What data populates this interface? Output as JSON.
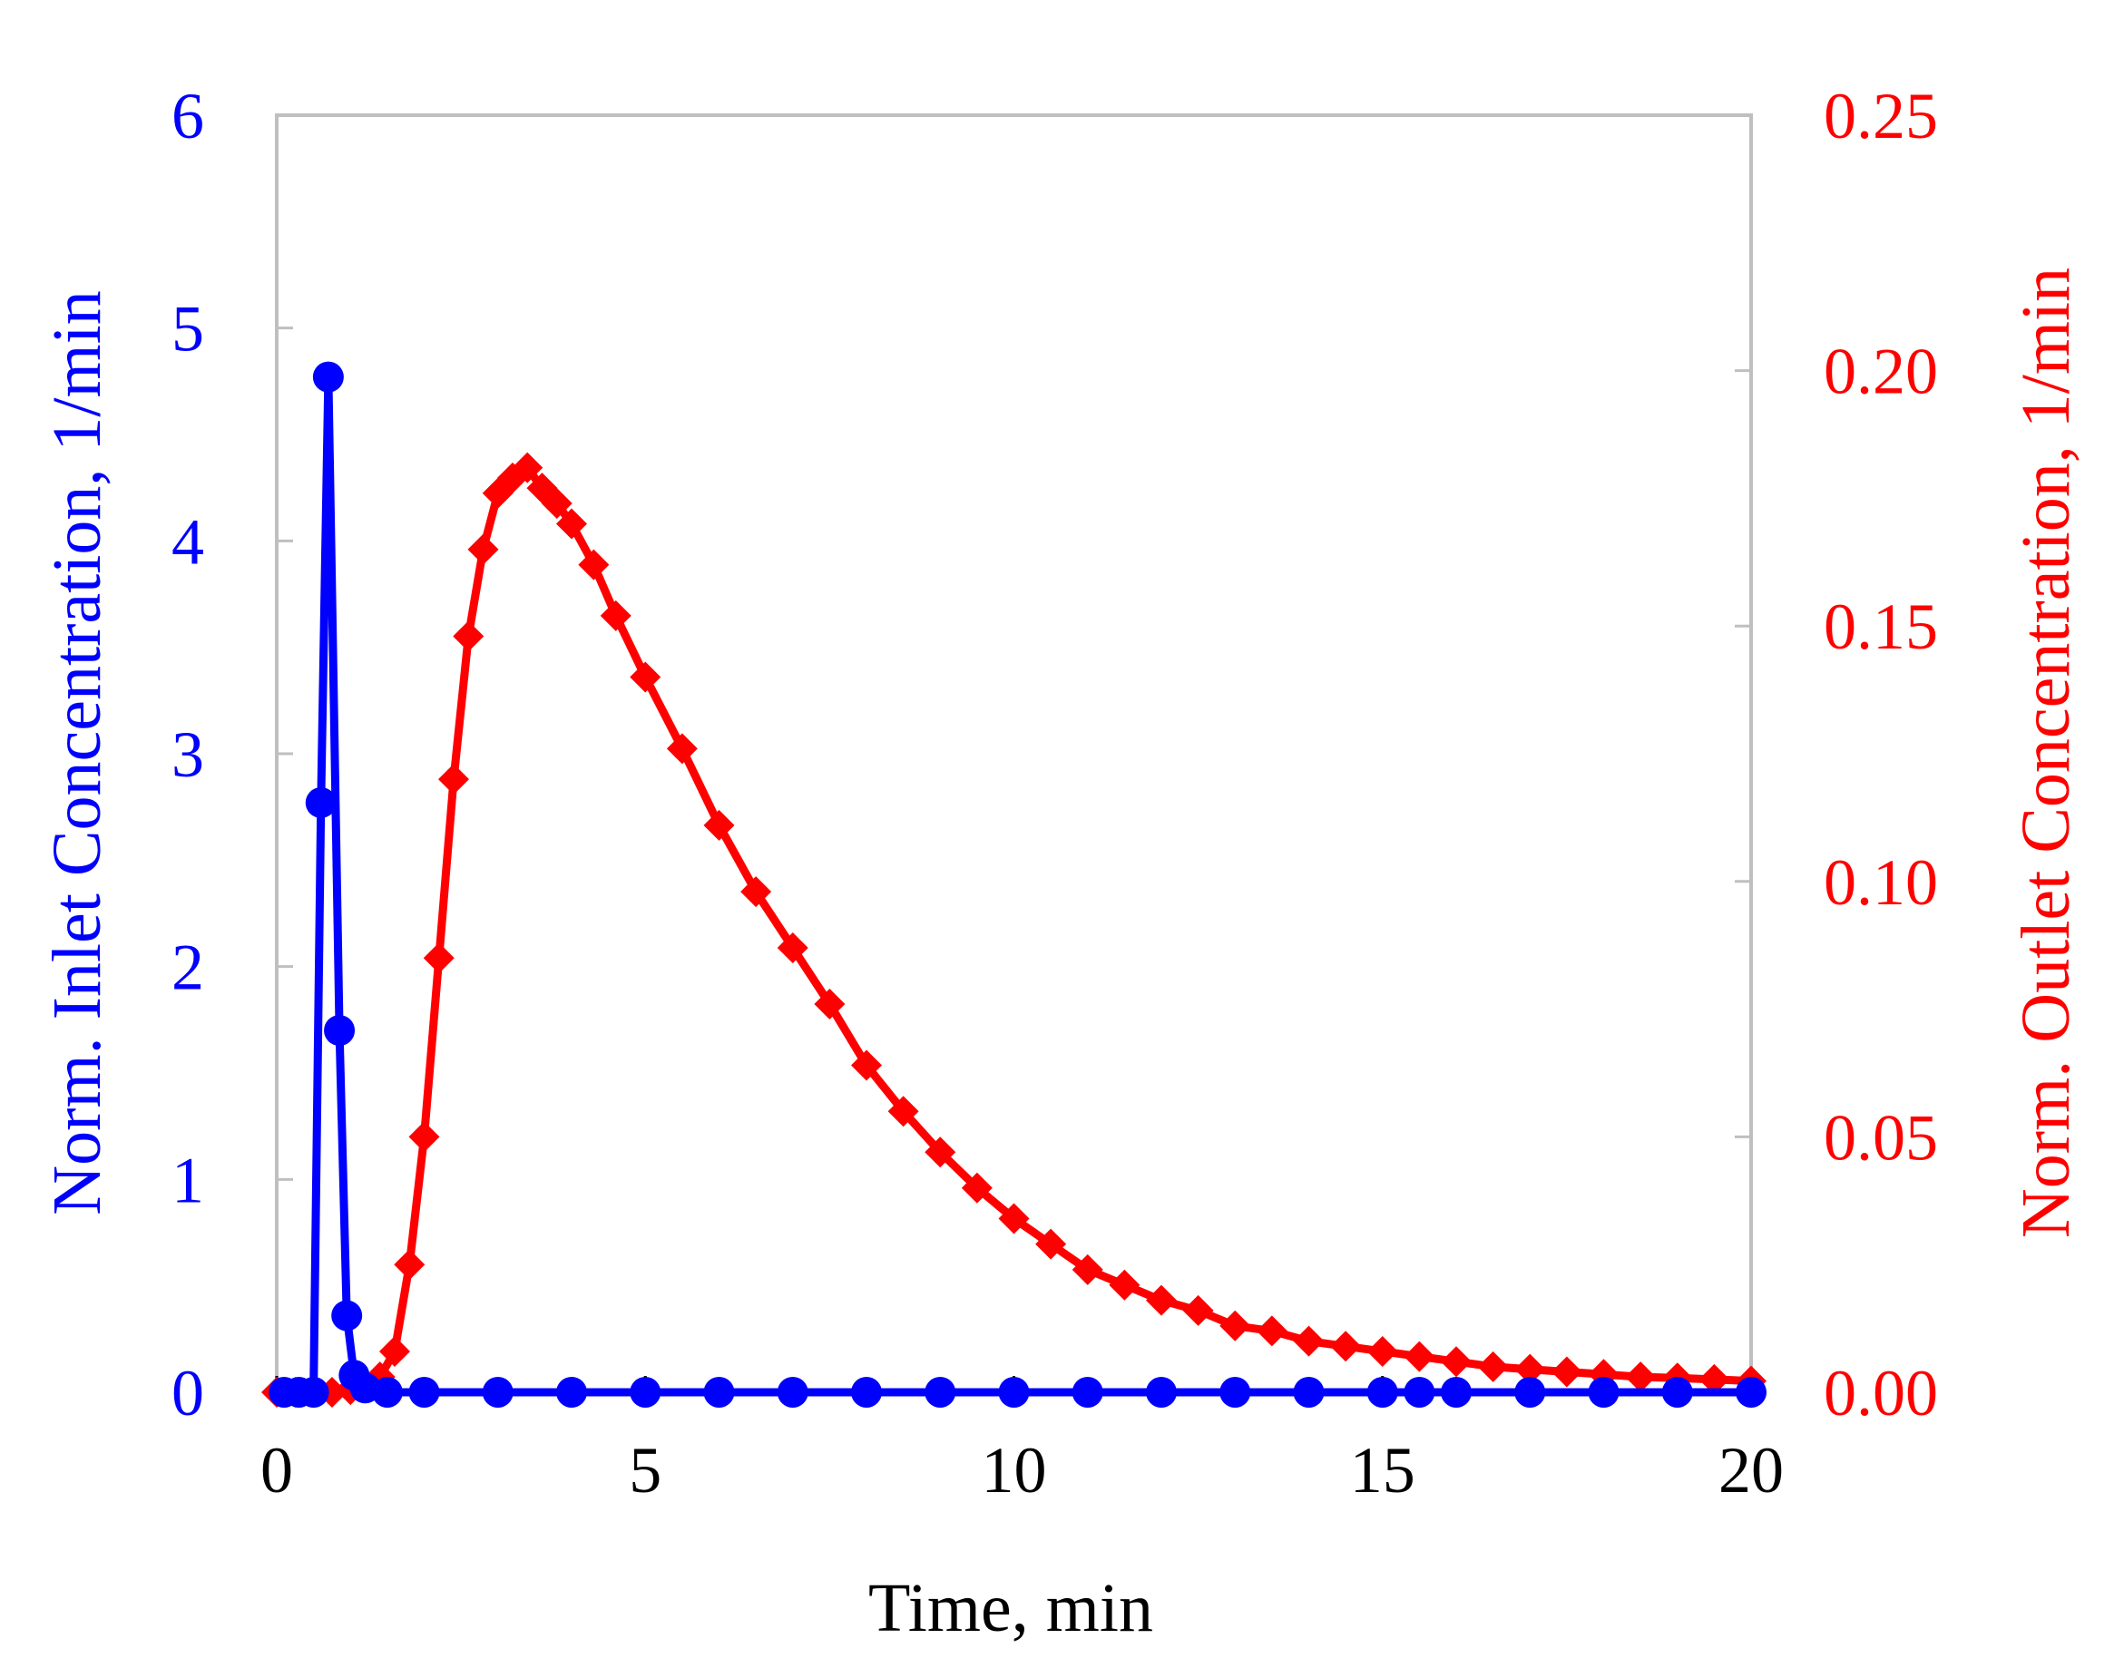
{
  "chart_data": {
    "type": "line",
    "xlabel": "Time, min",
    "ylabel_left": "Norm. Inlet Concentration, 1/min",
    "ylabel_right": "Norm. Outlet Concentration, 1/min",
    "xlim": [
      0,
      20
    ],
    "ylim_left": [
      0,
      6
    ],
    "ylim_right": [
      0,
      0.25
    ],
    "x_ticks": [
      "0",
      "5",
      "10",
      "15",
      "20"
    ],
    "y_left_ticks": [
      "0",
      "1",
      "2",
      "3",
      "4",
      "5",
      "6"
    ],
    "y_right_ticks": [
      "0.00",
      "0.05",
      "0.10",
      "0.15",
      "0.20",
      "0.25"
    ],
    "colors": {
      "inlet": "#0000ff",
      "outlet": "#ff0000",
      "frame": "#bfbfbf"
    },
    "series": [
      {
        "name": "Norm. Inlet Concentration",
        "axis": "left",
        "marker": "circle",
        "x": [
          0.1,
          0.3,
          0.5,
          0.6,
          0.7,
          0.85,
          0.95,
          1.05,
          1.2,
          1.5,
          2,
          3,
          4,
          5,
          6,
          7,
          8,
          9,
          10,
          11,
          12,
          13,
          14,
          15,
          15.5,
          16,
          17,
          18,
          19,
          20
        ],
        "y": [
          0,
          0,
          0,
          2.77,
          4.77,
          1.7,
          0.36,
          0.08,
          0.02,
          0,
          0,
          0,
          0,
          0,
          0,
          0,
          0,
          0,
          0,
          0,
          0,
          0,
          0,
          0,
          0,
          0,
          0,
          0,
          0,
          0
        ]
      },
      {
        "name": "Norm. Outlet Concentration",
        "axis": "right",
        "marker": "diamond",
        "x": [
          0,
          0.25,
          0.5,
          0.75,
          1.0,
          1.2,
          1.4,
          1.6,
          1.8,
          2.0,
          2.2,
          2.4,
          2.6,
          2.8,
          3.0,
          3.2,
          3.4,
          3.6,
          3.8,
          4.0,
          4.3,
          4.6,
          5.0,
          5.5,
          6.0,
          6.5,
          7.0,
          7.5,
          8.0,
          8.5,
          9.0,
          9.5,
          10.0,
          10.5,
          11.0,
          11.5,
          12.0,
          12.5,
          13.0,
          13.5,
          14.0,
          14.5,
          15.0,
          15.5,
          16.0,
          16.5,
          17.0,
          17.5,
          18.0,
          18.5,
          19.0,
          19.5,
          20.0
        ],
        "y": [
          0,
          0,
          0,
          0,
          0.0005,
          0.001,
          0.003,
          0.008,
          0.025,
          0.05,
          0.085,
          0.12,
          0.148,
          0.165,
          0.176,
          0.179,
          0.181,
          0.177,
          0.174,
          0.17,
          0.162,
          0.152,
          0.14,
          0.126,
          0.111,
          0.098,
          0.087,
          0.076,
          0.064,
          0.055,
          0.047,
          0.04,
          0.034,
          0.029,
          0.024,
          0.021,
          0.018,
          0.016,
          0.013,
          0.012,
          0.01,
          0.009,
          0.008,
          0.007,
          0.006,
          0.005,
          0.0045,
          0.004,
          0.0035,
          0.003,
          0.0028,
          0.0025,
          0.0022
        ]
      }
    ]
  }
}
